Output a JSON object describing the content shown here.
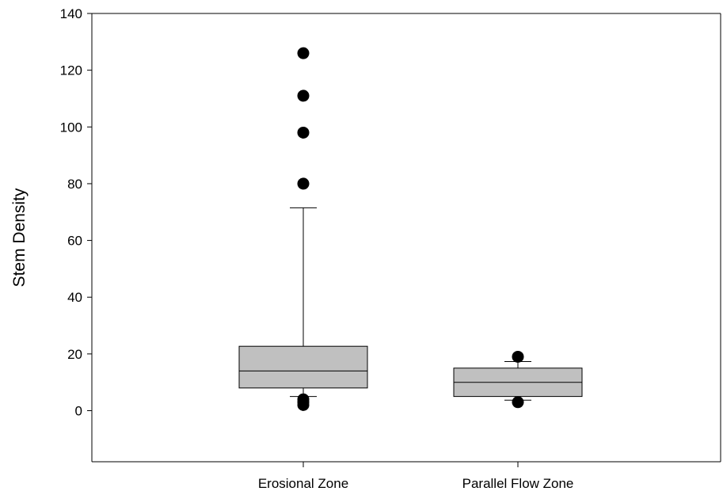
{
  "chart_data": {
    "type": "box",
    "ylabel": "Stem Density",
    "xlabel": "",
    "ylim": [
      -18,
      140
    ],
    "yticks": [
      0,
      20,
      40,
      60,
      80,
      100,
      120,
      140
    ],
    "ytick_labels": [
      "0",
      "20",
      "40",
      "60",
      "80",
      "100",
      "120",
      "140"
    ],
    "categories": [
      "Erosional Zone",
      "Parallel Flow Zone"
    ],
    "boxes": [
      {
        "category": "Erosional Zone",
        "whisker_low": 5,
        "q1": 8,
        "median": 14,
        "q3": 22.7,
        "whisker_high": 71.5,
        "outliers": [
          126,
          111,
          98,
          80,
          4,
          3,
          2
        ]
      },
      {
        "category": "Parallel Flow Zone",
        "whisker_low": 3.7,
        "q1": 5,
        "median": 10,
        "q3": 15,
        "whisker_high": 17.3,
        "outliers": [
          19,
          3
        ]
      }
    ],
    "box_color": "#c0c0c0",
    "grid": false,
    "legend": "none"
  }
}
